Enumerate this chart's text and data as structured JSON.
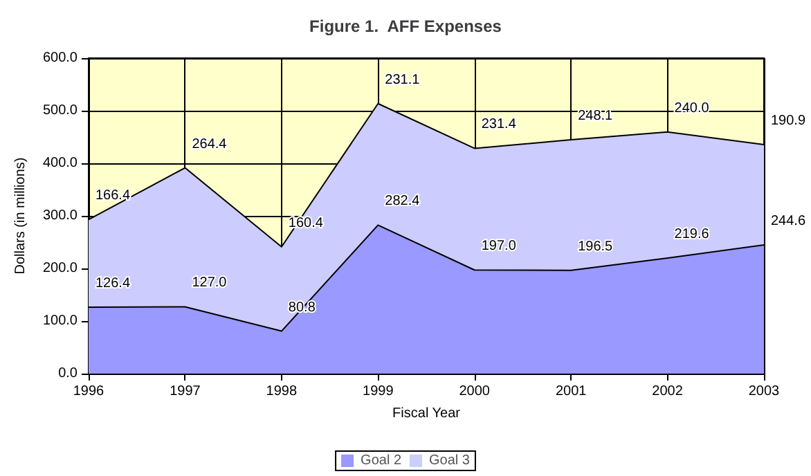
{
  "chart_data": {
    "type": "area",
    "title": "Figure 1.  AFF Expenses",
    "xlabel": "Fiscal Year",
    "ylabel": "Dollars (in millions)",
    "categories": [
      "1996",
      "1997",
      "1998",
      "1999",
      "2000",
      "2001",
      "2002",
      "2003"
    ],
    "series": [
      {
        "name": "Goal 2",
        "color": "#9999ff",
        "values": [
          126.4,
          127.0,
          80.8,
          282.4,
          197.0,
          196.5,
          219.6,
          244.6
        ],
        "value_labels": [
          "126.4",
          "127.0",
          "80.8",
          "282.4",
          "197.0",
          "196.5",
          "219.6",
          "244.6"
        ]
      },
      {
        "name": "Goal 3",
        "color": "#ccccff",
        "values": [
          166.4,
          264.4,
          160.4,
          231.1,
          231.4,
          248.1,
          240.0,
          190.9
        ],
        "value_labels": [
          "166.4",
          "264.4",
          "160.4",
          "231.1",
          "231.4",
          "248.1",
          "240.0",
          "190.9"
        ]
      }
    ],
    "stacked": true,
    "ylim": [
      0,
      600
    ],
    "yticks": [
      {
        "value": 0,
        "label": "0.0"
      },
      {
        "value": 100,
        "label": "100.0"
      },
      {
        "value": 200,
        "label": "200.0"
      },
      {
        "value": 300,
        "label": "300.0"
      },
      {
        "value": 400,
        "label": "400.0"
      },
      {
        "value": 500,
        "label": "500.0"
      },
      {
        "value": 600,
        "label": "600.0"
      }
    ],
    "grid": true,
    "legend": "bottom"
  }
}
